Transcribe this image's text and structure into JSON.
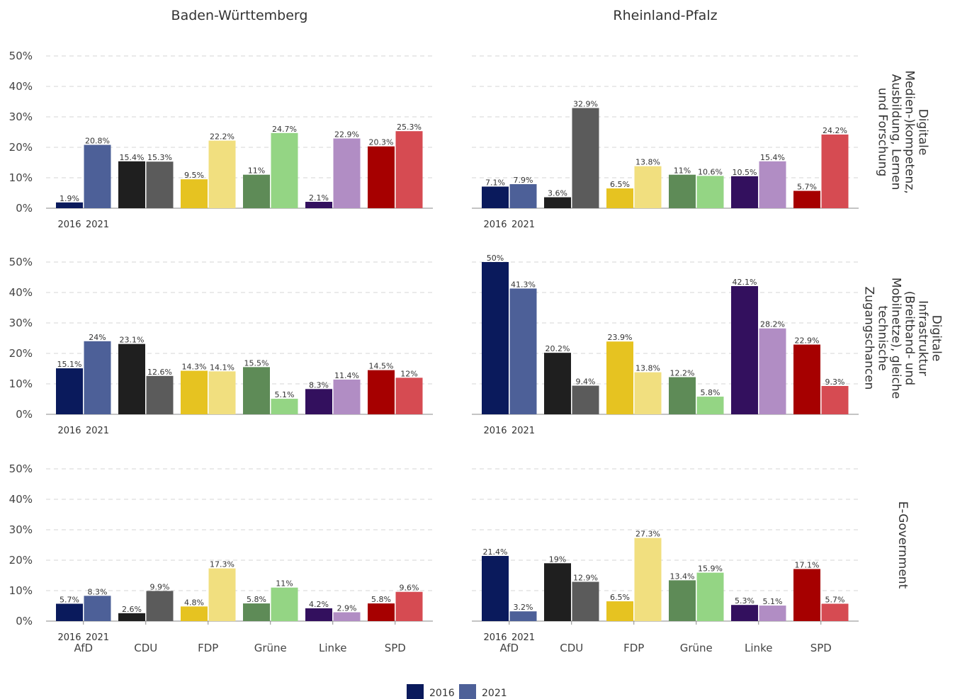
{
  "chart_data": {
    "type": "bar",
    "facets": {
      "columns": [
        "Baden-Württemberg",
        "Rheinland-Pfalz"
      ],
      "rows": [
        [
          "Digitale",
          "Medien-)kompetenz,",
          "Ausbildung, Lernen",
          "und Forschung"
        ],
        [
          "Digitale",
          "Infrastruktur",
          "(Breitband- und",
          "Mobilnetze), gleiche",
          "technische",
          "Zugangschancen"
        ],
        [
          "E-Government"
        ]
      ]
    },
    "categories": [
      "AfD",
      "CDU",
      "FDP",
      "Grüne",
      "Linke",
      "SPD"
    ],
    "series": [
      {
        "name": "2016"
      },
      {
        "name": "2021"
      }
    ],
    "yticks": [
      "0%",
      "10%",
      "20%",
      "30%",
      "40%",
      "50%"
    ],
    "ylim": [
      0,
      50
    ],
    "grid": true,
    "legend_position": "bottom",
    "colors": {
      "AfD": {
        "2016": "#0a1a5c",
        "2021": "#4d6098"
      },
      "CDU": {
        "2016": "#1f1f1f",
        "2021": "#5b5b5b"
      },
      "FDP": {
        "2016": "#e6c321",
        "2021": "#f1df7f"
      },
      "Grüne": {
        "2016": "#5e8b57",
        "2021": "#94d584"
      },
      "Linke": {
        "2016": "#33105e",
        "2021": "#b18dc4"
      },
      "SPD": {
        "2016": "#a60000",
        "2021": "#d64b52"
      }
    },
    "legend_colors": {
      "2016": "#0a1a5c",
      "2021": "#4d6098"
    },
    "panels": [
      {
        "row": 0,
        "col": 0,
        "values_2016": [
          1.9,
          15.4,
          9.5,
          11,
          2.1,
          20.3
        ],
        "values_2021": [
          20.8,
          15.3,
          22.2,
          24.7,
          22.9,
          25.3
        ],
        "labels_2016": [
          "1.9%",
          "15.4%",
          "9.5%",
          "11%",
          "2.1%",
          "20.3%"
        ],
        "labels_2021": [
          "20.8%",
          "15.3%",
          "22.2%",
          "24.7%",
          "22.9%",
          "25.3%"
        ]
      },
      {
        "row": 0,
        "col": 1,
        "values_2016": [
          7.1,
          3.6,
          6.5,
          11,
          10.5,
          5.7
        ],
        "values_2021": [
          7.9,
          32.9,
          13.8,
          10.6,
          15.4,
          24.2
        ],
        "labels_2016": [
          "7.1%",
          "3.6%",
          "6.5%",
          "11%",
          "10.5%",
          "5.7%"
        ],
        "labels_2021": [
          "7.9%",
          "32.9%",
          "13.8%",
          "10.6%",
          "15.4%",
          "24.2%"
        ]
      },
      {
        "row": 1,
        "col": 0,
        "values_2016": [
          15.1,
          23.1,
          14.3,
          15.5,
          8.3,
          14.5
        ],
        "values_2021": [
          24,
          12.6,
          14.1,
          5.1,
          11.4,
          12
        ],
        "labels_2016": [
          "15.1%",
          "23.1%",
          "14.3%",
          "15.5%",
          "8.3%",
          "14.5%"
        ],
        "labels_2021": [
          "24%",
          "12.6%",
          "14.1%",
          "5.1%",
          "11.4%",
          "12%"
        ]
      },
      {
        "row": 1,
        "col": 1,
        "values_2016": [
          50,
          20.2,
          23.9,
          12.2,
          42.1,
          22.9
        ],
        "values_2021": [
          41.3,
          9.4,
          13.8,
          5.8,
          28.2,
          9.3
        ],
        "labels_2016": [
          "50%",
          "20.2%",
          "23.9%",
          "12.2%",
          "42.1%",
          "22.9%"
        ],
        "labels_2021": [
          "41.3%",
          "9.4%",
          "13.8%",
          "5.8%",
          "28.2%",
          "9.3%"
        ]
      },
      {
        "row": 2,
        "col": 0,
        "values_2016": [
          5.7,
          2.6,
          4.8,
          5.8,
          4.2,
          5.8
        ],
        "values_2021": [
          8.3,
          9.9,
          17.3,
          11,
          2.9,
          9.6
        ],
        "labels_2016": [
          "5.7%",
          "2.6%",
          "4.8%",
          "5.8%",
          "4.2%",
          "5.8%"
        ],
        "labels_2021": [
          "8.3%",
          "9.9%",
          "17.3%",
          "11%",
          "2.9%",
          "9.6%"
        ]
      },
      {
        "row": 2,
        "col": 1,
        "values_2016": [
          21.4,
          19,
          6.5,
          13.4,
          5.3,
          17.1
        ],
        "values_2021": [
          3.2,
          12.9,
          27.3,
          15.9,
          5.1,
          5.7
        ],
        "labels_2016": [
          "21.4%",
          "19%",
          "6.5%",
          "13.4%",
          "5.3%",
          "17.1%"
        ],
        "labels_2021": [
          "3.2%",
          "12.9%",
          "27.3%",
          "15.9%",
          "5.1%",
          "5.7%"
        ]
      }
    ]
  }
}
